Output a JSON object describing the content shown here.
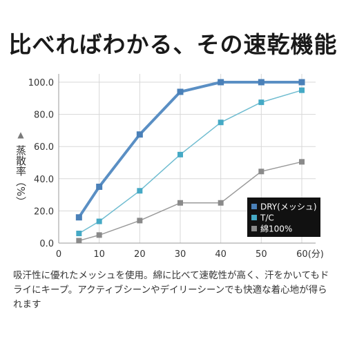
{
  "headline": "比べればわかる、その速乾機能",
  "caption": "吸汗性に優れたメッシュを使用。綿に比べて速乾性が高く、汗をかいてもドライにキープ。アクティブシーンやデイリーシーンでも快適な着心地が得られます",
  "chart_data": {
    "type": "line",
    "title": "",
    "xlabel": "",
    "ylabel": "蒸散率（%）",
    "ylabel_marker": "▲",
    "xlim": [
      0,
      60
    ],
    "ylim": [
      0,
      100
    ],
    "x_ticks": [
      0,
      10,
      20,
      30,
      40,
      50,
      60
    ],
    "x_tick_labels": [
      "0",
      "10",
      "20",
      "30",
      "40",
      "50",
      "60(分)"
    ],
    "y_ticks": [
      0,
      20,
      40,
      60,
      80,
      100
    ],
    "y_tick_labels": [
      "0.0",
      "20.0",
      "40.0",
      "60.0",
      "80.0",
      "100.0"
    ],
    "grid": true,
    "legend_position": "bottom-right",
    "series": [
      {
        "name": "DRY(メッシュ)",
        "color": "#5a8fc4",
        "marker_color": "#4a80b8",
        "emphasis": true,
        "x": [
          5,
          10,
          20,
          30,
          40,
          50,
          60
        ],
        "values": [
          16,
          35,
          67.5,
          94,
          100,
          100,
          100
        ]
      },
      {
        "name": "T/C",
        "color": "#6fbcd0",
        "marker_color": "#45a9c5",
        "emphasis": false,
        "x": [
          5,
          10,
          20,
          30,
          40,
          50,
          60
        ],
        "values": [
          6,
          13.5,
          32.5,
          55,
          75,
          87.5,
          95
        ]
      },
      {
        "name": "綿100%",
        "color": "#9a9a9a",
        "marker_color": "#8a8a8a",
        "emphasis": false,
        "x": [
          5,
          10,
          20,
          30,
          40,
          50,
          60
        ],
        "values": [
          1.5,
          5,
          14,
          25,
          25,
          44.5,
          50.5
        ]
      }
    ]
  }
}
